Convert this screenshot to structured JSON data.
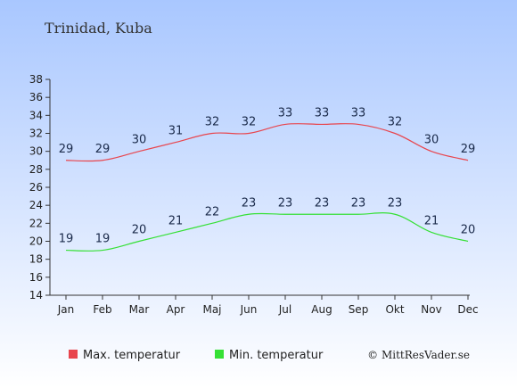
{
  "chart_data": {
    "type": "line",
    "title": "Trinidad, Kuba",
    "categories": [
      "Jan",
      "Feb",
      "Mar",
      "Apr",
      "Maj",
      "Jun",
      "Jul",
      "Aug",
      "Sep",
      "Okt",
      "Nov",
      "Dec"
    ],
    "series": [
      {
        "name": "Max. temperatur",
        "color": "#e8454d",
        "values": [
          29,
          29,
          30,
          31,
          32,
          32,
          33,
          33,
          33,
          32,
          30,
          29
        ]
      },
      {
        "name": "Min. temperatur",
        "color": "#35e035",
        "values": [
          19,
          19,
          20,
          21,
          22,
          23,
          23,
          23,
          23,
          23,
          21,
          20
        ]
      }
    ],
    "yticks": [
      14,
      16,
      18,
      20,
      22,
      24,
      26,
      28,
      30,
      32,
      34,
      36,
      38
    ],
    "ylim": [
      14,
      38
    ],
    "xlabel": "",
    "ylabel": "",
    "grid": false,
    "legend_position": "bottom-left",
    "background_gradient": [
      "#a9c7ff",
      "#ffffff"
    ]
  },
  "credit": "© MittResVader.se"
}
